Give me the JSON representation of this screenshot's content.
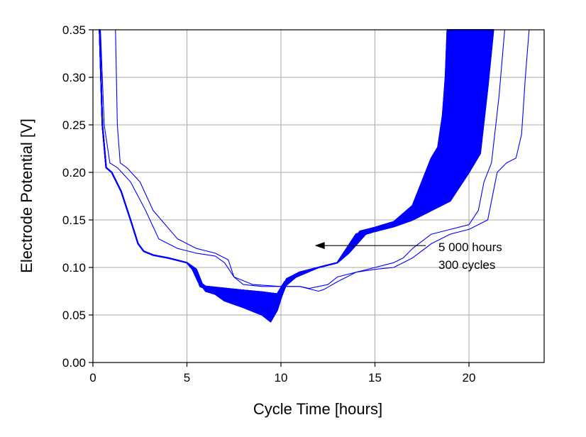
{
  "chart_data": {
    "type": "line",
    "title": "",
    "xlabel": "Cycle Time [hours]",
    "ylabel": "Electrode Potential [V]",
    "xlim": [
      0,
      24
    ],
    "ylim": [
      0,
      0.35
    ],
    "x_ticks": [
      0,
      5,
      10,
      15,
      20
    ],
    "x_tick_labels": [
      "0",
      "5",
      "10",
      "15",
      "20"
    ],
    "y_ticks": [
      0,
      0.05,
      0.1,
      0.15,
      0.2,
      0.25,
      0.3,
      0.35
    ],
    "y_tick_labels": [
      "0.00",
      "0.05",
      "0.10",
      "0.15",
      "0.20",
      "0.25",
      "0.30",
      "0.35"
    ],
    "grid": true,
    "legend": false,
    "series_color": "#0000ff",
    "series": [
      {
        "x": [
          0.35,
          0.5,
          0.7,
          1.0,
          1.5,
          2.0,
          2.4,
          2.7,
          3.2,
          4.0,
          5.0,
          5.4,
          5.7,
          6.0,
          6.5,
          7.0,
          8.0,
          9.0,
          9.45,
          9.8,
          10.2,
          10.8,
          12.0,
          13.0,
          13.5,
          14.0,
          15.0,
          16.0,
          17.0,
          17.6,
          18.0,
          18.3,
          18.6,
          18.75,
          18.85
        ],
        "y": [
          0.35,
          0.25,
          0.205,
          0.2,
          0.18,
          0.15,
          0.125,
          0.117,
          0.113,
          0.11,
          0.105,
          0.098,
          0.083,
          0.075,
          0.072,
          0.065,
          0.058,
          0.05,
          0.043,
          0.055,
          0.08,
          0.09,
          0.1,
          0.105,
          0.12,
          0.135,
          0.138,
          0.145,
          0.16,
          0.19,
          0.21,
          0.22,
          0.26,
          0.3,
          0.35
        ]
      },
      {
        "x": [
          0.35,
          0.5,
          0.7,
          1.0,
          1.5,
          2.0,
          2.4,
          2.7,
          3.2,
          4.0,
          5.0,
          5.3,
          5.6,
          6.0,
          7.0,
          8.0,
          9.0,
          9.8,
          10.2,
          10.8,
          12.0,
          13.0,
          13.5,
          14.0,
          15.0,
          16.0,
          17.0,
          17.6,
          18.0,
          18.4,
          18.9,
          19.15,
          19.3
        ],
        "y": [
          0.35,
          0.25,
          0.205,
          0.2,
          0.18,
          0.15,
          0.125,
          0.117,
          0.113,
          0.11,
          0.105,
          0.098,
          0.085,
          0.08,
          0.078,
          0.076,
          0.074,
          0.072,
          0.085,
          0.092,
          0.1,
          0.105,
          0.12,
          0.135,
          0.14,
          0.148,
          0.165,
          0.195,
          0.215,
          0.228,
          0.27,
          0.31,
          0.35
        ]
      },
      {
        "x": [
          0.35,
          0.5,
          0.7,
          1.0,
          1.5,
          2.0,
          2.4,
          2.7,
          3.2,
          4.0,
          5.0,
          5.4,
          5.7,
          6.0,
          7.0,
          8.0,
          9.0,
          9.9,
          10.3,
          11.0,
          12.0,
          13.0,
          13.5,
          14.2,
          15.0,
          16.0,
          17.0,
          17.6,
          18.0,
          18.5,
          19.0,
          19.6,
          20.1,
          20.4
        ],
        "y": [
          0.35,
          0.25,
          0.205,
          0.2,
          0.18,
          0.15,
          0.125,
          0.117,
          0.113,
          0.11,
          0.105,
          0.097,
          0.08,
          0.078,
          0.076,
          0.074,
          0.072,
          0.07,
          0.088,
          0.095,
          0.1,
          0.105,
          0.12,
          0.138,
          0.142,
          0.148,
          0.16,
          0.19,
          0.21,
          0.225,
          0.225,
          0.235,
          0.29,
          0.35
        ]
      },
      {
        "x": [
          0.35,
          0.5,
          0.7,
          1.0,
          1.5,
          2.0,
          2.4,
          2.7,
          3.2,
          4.0,
          5.0,
          5.5,
          5.8,
          6.1,
          7.0,
          8.0,
          9.0,
          10.0,
          10.4,
          11.0,
          12.0,
          13.0,
          13.6,
          14.5,
          15.0,
          16.0,
          17.0,
          18.0,
          19.0,
          20.0,
          20.6,
          21.0,
          21.3
        ],
        "y": [
          0.35,
          0.25,
          0.205,
          0.2,
          0.18,
          0.15,
          0.125,
          0.117,
          0.113,
          0.11,
          0.105,
          0.098,
          0.083,
          0.078,
          0.075,
          0.073,
          0.07,
          0.068,
          0.088,
          0.094,
          0.1,
          0.105,
          0.115,
          0.135,
          0.138,
          0.143,
          0.15,
          0.16,
          0.17,
          0.2,
          0.22,
          0.29,
          0.35
        ]
      },
      {
        "x": [
          0.4,
          0.6,
          0.9,
          1.3,
          2.0,
          2.8,
          3.5,
          4.5,
          5.5,
          6.5,
          7.0,
          7.5,
          8.0,
          9.0,
          10.0,
          11.0,
          11.5,
          12.0,
          12.5,
          13.0,
          14.0,
          15.0,
          16.0,
          16.5,
          17.0,
          18.0,
          19.0,
          20.0,
          20.5,
          20.8,
          21.2,
          21.6,
          21.9
        ],
        "y": [
          0.35,
          0.25,
          0.21,
          0.205,
          0.19,
          0.16,
          0.13,
          0.12,
          0.115,
          0.112,
          0.105,
          0.09,
          0.082,
          0.08,
          0.08,
          0.08,
          0.078,
          0.08,
          0.082,
          0.09,
          0.095,
          0.1,
          0.105,
          0.11,
          0.12,
          0.135,
          0.14,
          0.145,
          0.16,
          0.19,
          0.21,
          0.28,
          0.35
        ]
      },
      {
        "x": [
          1.2,
          1.3,
          1.45,
          1.8,
          2.5,
          3.2,
          4.5,
          5.5,
          6.5,
          7.2,
          7.5,
          8.5,
          10.0,
          11.0,
          12.0,
          12.3,
          13.0,
          14.0,
          15.0,
          16.0,
          16.5,
          17.0,
          18.0,
          19.0,
          20.0,
          21.0,
          21.5,
          22.0,
          22.5,
          22.8,
          23.0,
          23.2
        ],
        "y": [
          0.35,
          0.25,
          0.21,
          0.205,
          0.19,
          0.16,
          0.13,
          0.12,
          0.115,
          0.108,
          0.09,
          0.082,
          0.08,
          0.08,
          0.075,
          0.077,
          0.085,
          0.095,
          0.098,
          0.1,
          0.105,
          0.11,
          0.125,
          0.135,
          0.14,
          0.15,
          0.2,
          0.21,
          0.215,
          0.24,
          0.3,
          0.35
        ]
      }
    ],
    "annotation": {
      "line1": "5 000 hours",
      "line2": "300 cycles",
      "arrow_from": [
        17.7,
        0.123
      ],
      "arrow_to": [
        11.8,
        0.123
      ]
    }
  }
}
